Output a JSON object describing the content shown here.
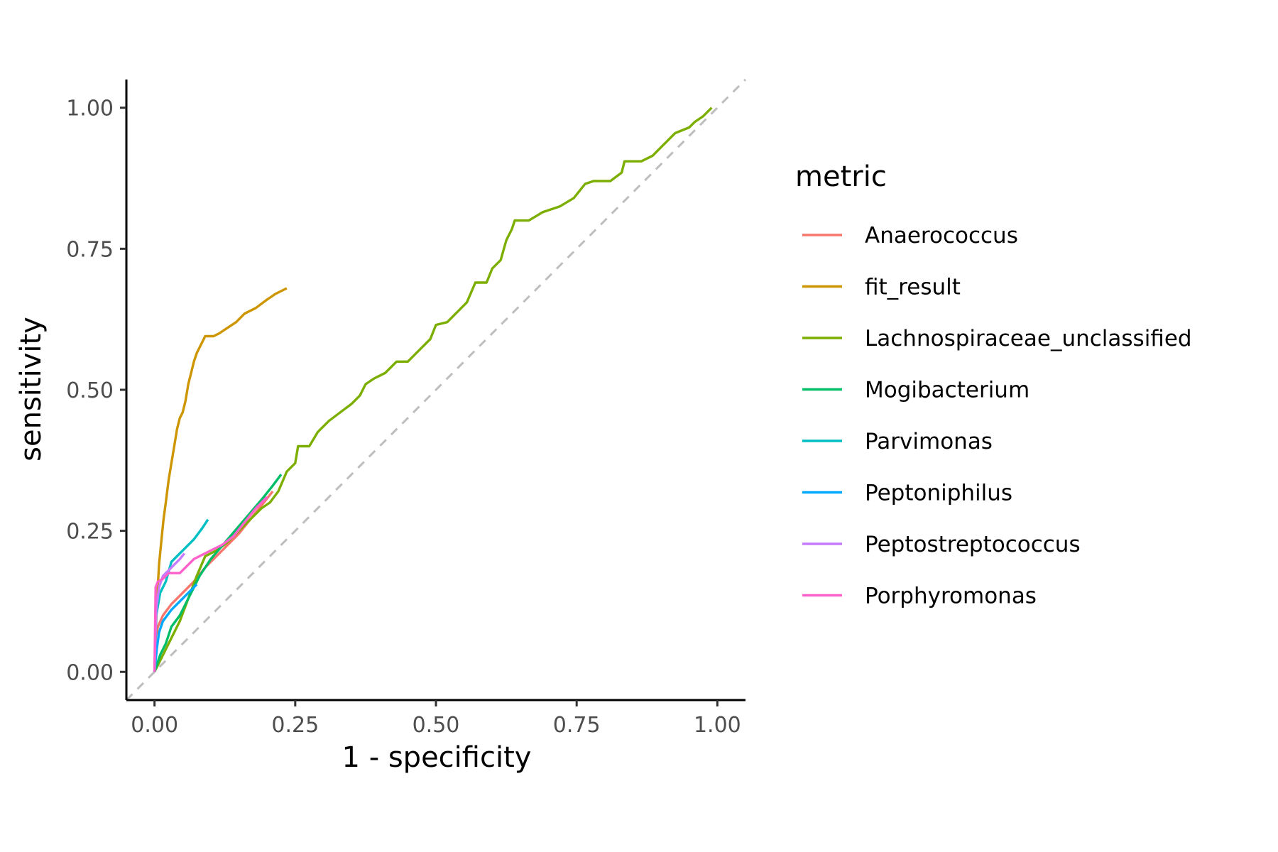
{
  "chart_data": {
    "type": "line",
    "xlabel": "1 - specificity",
    "ylabel": "sensitivity",
    "xlim": [
      -0.05,
      1.05
    ],
    "ylim": [
      -0.05,
      1.05
    ],
    "x_ticks": [
      0,
      0.25,
      0.5,
      0.75,
      1
    ],
    "x_tick_labels": [
      "0.00",
      "0.25",
      "0.50",
      "0.75",
      "1.00"
    ],
    "y_ticks": [
      0,
      0.25,
      0.5,
      0.75,
      1
    ],
    "y_tick_labels": [
      "0.00",
      "0.25",
      "0.50",
      "0.75",
      "1.00"
    ],
    "grid": false,
    "reference_line": {
      "from": [
        0,
        0
      ],
      "to": [
        1,
        1
      ],
      "style": "dashed",
      "color": "#bebebe"
    },
    "legend": {
      "title": "metric",
      "position": "right"
    },
    "series": [
      {
        "name": "Anaerococcus",
        "color": "#F8766D",
        "points": [
          [
            0,
            0
          ],
          [
            0.002,
            0.06
          ],
          [
            0.006,
            0.08
          ],
          [
            0.015,
            0.1
          ],
          [
            0.03,
            0.12
          ],
          [
            0.05,
            0.14
          ],
          [
            0.07,
            0.16
          ],
          [
            0.09,
            0.185
          ],
          [
            0.11,
            0.205
          ],
          [
            0.13,
            0.225
          ],
          [
            0.15,
            0.245
          ],
          [
            0.17,
            0.27
          ],
          [
            0.19,
            0.295
          ],
          [
            0.21,
            0.32
          ]
        ]
      },
      {
        "name": "fit_result",
        "color": "#CD9600",
        "points": [
          [
            0,
            0
          ],
          [
            0.004,
            0.12
          ],
          [
            0.008,
            0.19
          ],
          [
            0.012,
            0.23
          ],
          [
            0.016,
            0.27
          ],
          [
            0.02,
            0.3
          ],
          [
            0.025,
            0.34
          ],
          [
            0.03,
            0.37
          ],
          [
            0.035,
            0.4
          ],
          [
            0.04,
            0.43
          ],
          [
            0.045,
            0.45
          ],
          [
            0.05,
            0.46
          ],
          [
            0.055,
            0.48
          ],
          [
            0.06,
            0.51
          ],
          [
            0.065,
            0.53
          ],
          [
            0.07,
            0.55
          ],
          [
            0.075,
            0.565
          ],
          [
            0.08,
            0.575
          ],
          [
            0.09,
            0.595
          ],
          [
            0.105,
            0.595
          ],
          [
            0.115,
            0.6
          ],
          [
            0.13,
            0.61
          ],
          [
            0.145,
            0.62
          ],
          [
            0.16,
            0.635
          ],
          [
            0.18,
            0.645
          ],
          [
            0.2,
            0.66
          ],
          [
            0.215,
            0.67
          ],
          [
            0.235,
            0.68
          ]
        ]
      },
      {
        "name": "Lachnospiraceae_unclassified",
        "color": "#7CAE00",
        "points": [
          [
            0,
            0
          ],
          [
            0.01,
            0.02
          ],
          [
            0.02,
            0.04
          ],
          [
            0.03,
            0.06
          ],
          [
            0.045,
            0.09
          ],
          [
            0.06,
            0.13
          ],
          [
            0.075,
            0.17
          ],
          [
            0.09,
            0.205
          ],
          [
            0.11,
            0.215
          ],
          [
            0.13,
            0.23
          ],
          [
            0.15,
            0.25
          ],
          [
            0.17,
            0.27
          ],
          [
            0.19,
            0.29
          ],
          [
            0.205,
            0.3
          ],
          [
            0.22,
            0.32
          ],
          [
            0.235,
            0.355
          ],
          [
            0.25,
            0.37
          ],
          [
            0.255,
            0.4
          ],
          [
            0.275,
            0.4
          ],
          [
            0.29,
            0.425
          ],
          [
            0.31,
            0.445
          ],
          [
            0.33,
            0.46
          ],
          [
            0.35,
            0.475
          ],
          [
            0.365,
            0.49
          ],
          [
            0.375,
            0.51
          ],
          [
            0.39,
            0.52
          ],
          [
            0.41,
            0.53
          ],
          [
            0.43,
            0.55
          ],
          [
            0.45,
            0.55
          ],
          [
            0.47,
            0.57
          ],
          [
            0.49,
            0.59
          ],
          [
            0.5,
            0.615
          ],
          [
            0.52,
            0.62
          ],
          [
            0.54,
            0.64
          ],
          [
            0.555,
            0.655
          ],
          [
            0.57,
            0.69
          ],
          [
            0.59,
            0.69
          ],
          [
            0.6,
            0.715
          ],
          [
            0.615,
            0.73
          ],
          [
            0.625,
            0.765
          ],
          [
            0.635,
            0.785
          ],
          [
            0.64,
            0.8
          ],
          [
            0.665,
            0.8
          ],
          [
            0.69,
            0.815
          ],
          [
            0.72,
            0.825
          ],
          [
            0.745,
            0.84
          ],
          [
            0.765,
            0.865
          ],
          [
            0.78,
            0.87
          ],
          [
            0.81,
            0.87
          ],
          [
            0.83,
            0.885
          ],
          [
            0.835,
            0.905
          ],
          [
            0.865,
            0.905
          ],
          [
            0.885,
            0.915
          ],
          [
            0.9,
            0.93
          ],
          [
            0.91,
            0.94
          ],
          [
            0.925,
            0.955
          ],
          [
            0.95,
            0.965
          ],
          [
            0.96,
            0.975
          ],
          [
            0.975,
            0.985
          ],
          [
            0.99,
            1.0
          ]
        ]
      },
      {
        "name": "Mogibacterium",
        "color": "#00BE67",
        "points": [
          [
            0,
            0
          ],
          [
            0.01,
            0.03
          ],
          [
            0.02,
            0.05
          ],
          [
            0.03,
            0.08
          ],
          [
            0.045,
            0.1
          ],
          [
            0.06,
            0.13
          ],
          [
            0.08,
            0.17
          ],
          [
            0.1,
            0.2
          ],
          [
            0.13,
            0.235
          ],
          [
            0.16,
            0.27
          ],
          [
            0.19,
            0.305
          ],
          [
            0.21,
            0.33
          ],
          [
            0.225,
            0.35
          ]
        ]
      },
      {
        "name": "Parvimonas",
        "color": "#00BFC4",
        "points": [
          [
            0,
            0
          ],
          [
            0.003,
            0.1
          ],
          [
            0.01,
            0.14
          ],
          [
            0.02,
            0.16
          ],
          [
            0.03,
            0.195
          ],
          [
            0.05,
            0.215
          ],
          [
            0.07,
            0.235
          ],
          [
            0.085,
            0.255
          ],
          [
            0.095,
            0.27
          ]
        ]
      },
      {
        "name": "Peptoniphilus",
        "color": "#00A9FF",
        "points": [
          [
            0,
            0
          ],
          [
            0.004,
            0.04
          ],
          [
            0.008,
            0.07
          ],
          [
            0.015,
            0.09
          ],
          [
            0.03,
            0.11
          ],
          [
            0.05,
            0.13
          ],
          [
            0.065,
            0.145
          ],
          [
            0.075,
            0.155
          ]
        ]
      },
      {
        "name": "Peptostreptococcus",
        "color": "#C77CFF",
        "points": [
          [
            0,
            0
          ],
          [
            0.003,
            0.11
          ],
          [
            0.008,
            0.15
          ],
          [
            0.015,
            0.17
          ],
          [
            0.025,
            0.18
          ],
          [
            0.035,
            0.19
          ],
          [
            0.045,
            0.2
          ],
          [
            0.053,
            0.21
          ]
        ]
      },
      {
        "name": "Porphyromonas",
        "color": "#FF61CC",
        "points": [
          [
            0,
            0
          ],
          [
            0.002,
            0.15
          ],
          [
            0.006,
            0.16
          ],
          [
            0.015,
            0.165
          ],
          [
            0.025,
            0.175
          ],
          [
            0.045,
            0.175
          ],
          [
            0.07,
            0.2
          ],
          [
            0.1,
            0.215
          ],
          [
            0.12,
            0.225
          ],
          [
            0.14,
            0.24
          ],
          [
            0.16,
            0.265
          ],
          [
            0.18,
            0.29
          ],
          [
            0.2,
            0.31
          ]
        ]
      }
    ]
  }
}
